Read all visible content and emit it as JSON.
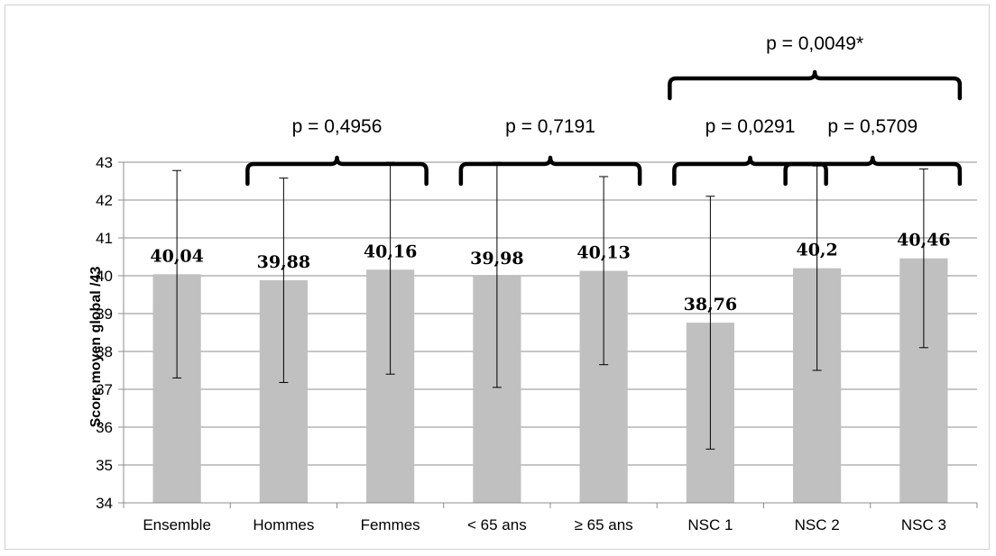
{
  "chart_data": {
    "type": "bar",
    "ylabel": "Score moyen global  /43",
    "xlabel": "",
    "ylim": [
      34,
      43
    ],
    "yticks": [
      34,
      35,
      36,
      37,
      38,
      39,
      40,
      41,
      42,
      43
    ],
    "grid": true,
    "bar_color": "#c0c0c0",
    "categories": [
      "Ensemble",
      "Hommes",
      "Femmes",
      "< 65 ans",
      "≥ 65 ans",
      "NSC 1",
      "NSC 2",
      "NSC 3"
    ],
    "values": [
      40.04,
      39.88,
      40.16,
      39.98,
      40.13,
      38.76,
      40.2,
      40.46
    ],
    "value_labels": [
      "40,04",
      "39,88",
      "40,16",
      "39,98",
      "40,13",
      "38,76",
      "40,2",
      "40,46"
    ],
    "error_bars": [
      {
        "low": 37.3,
        "high": 42.78
      },
      {
        "low": 37.18,
        "high": 42.58
      },
      {
        "low": 37.4,
        "high": 43.0
      },
      {
        "low": 37.05,
        "high": 43.0
      },
      {
        "low": 37.65,
        "high": 42.62
      },
      {
        "low": 35.42,
        "high": 42.1
      },
      {
        "low": 37.5,
        "high": 42.9
      },
      {
        "low": 38.1,
        "high": 42.82
      }
    ],
    "annotations": [
      {
        "text": "p = 0,4956",
        "from": 1,
        "to": 2,
        "level": 1
      },
      {
        "text": "p = 0,7191",
        "from": 3,
        "to": 4,
        "level": 1
      },
      {
        "text": "p = 0,0291",
        "from": 5,
        "to": 6,
        "level": 1
      },
      {
        "text": "p = 0,5709",
        "from": 6,
        "to": 7,
        "level": 1
      },
      {
        "text": "p = 0,0049*",
        "from": 5,
        "to": 7,
        "level": 2
      }
    ]
  }
}
